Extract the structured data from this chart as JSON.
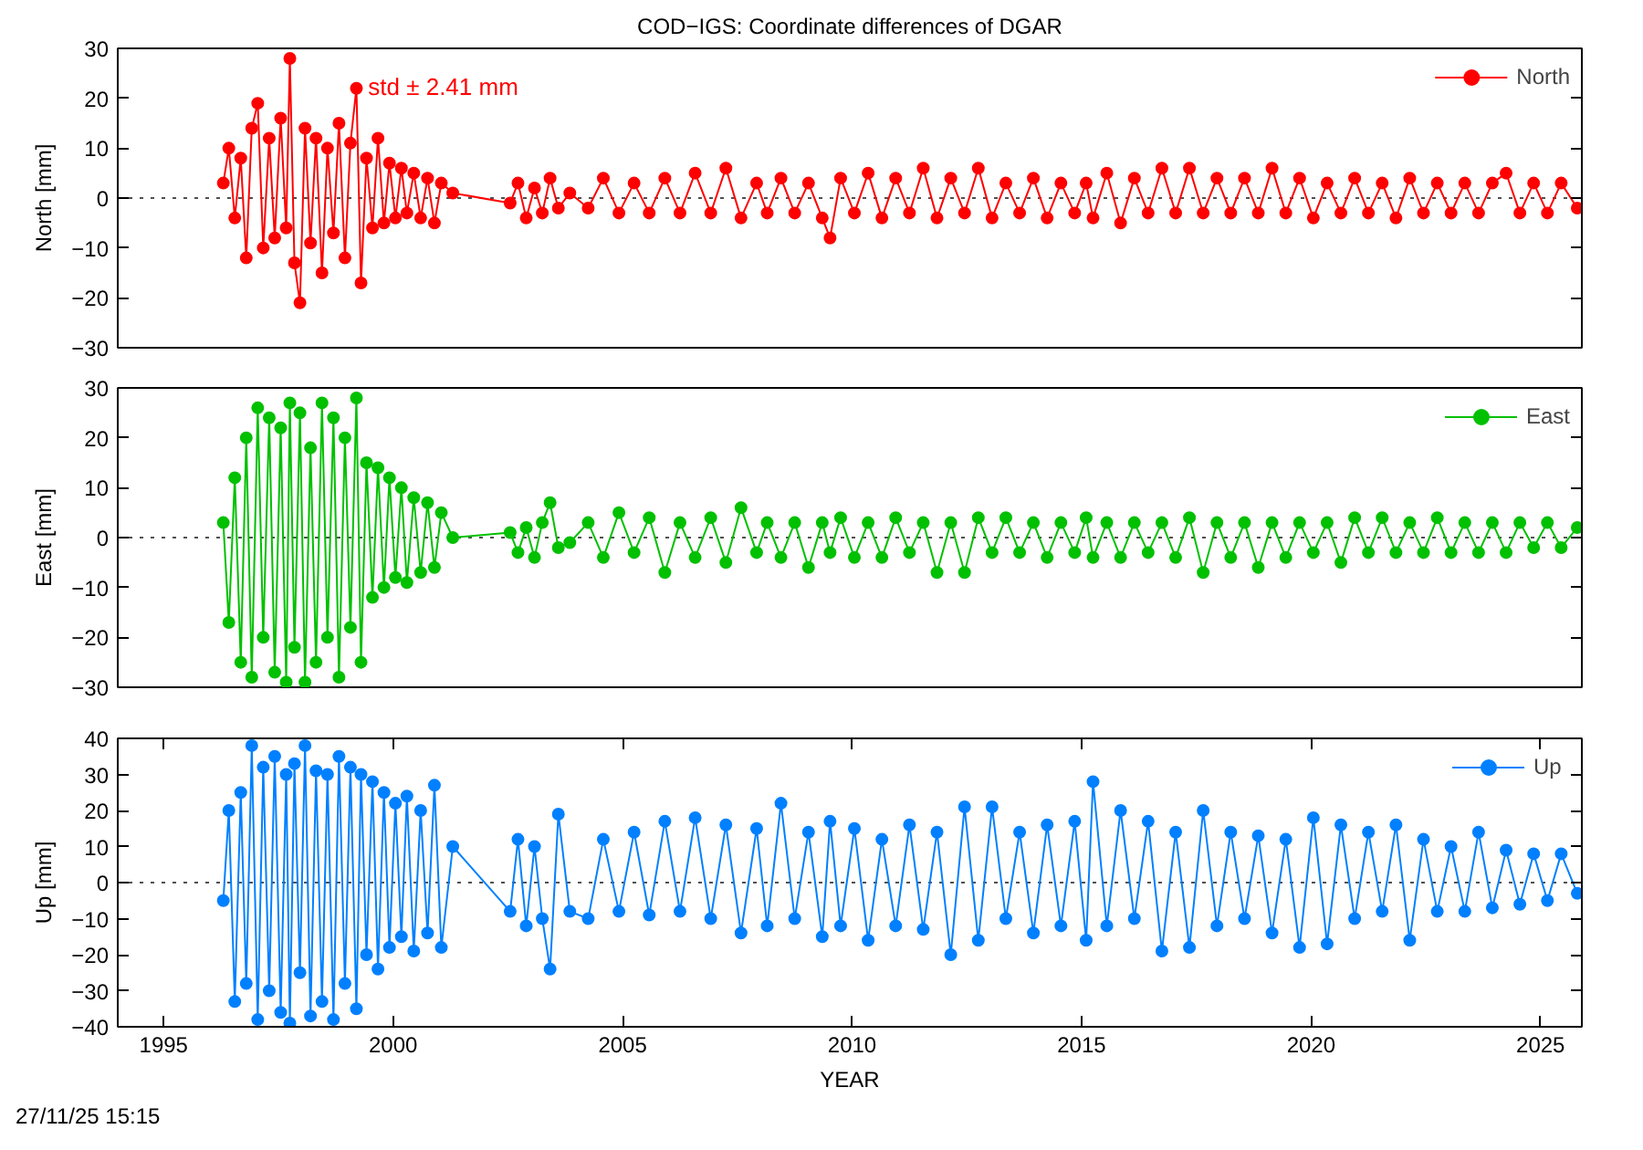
{
  "chart_data": [
    {
      "type": "line",
      "title": "COD−IGS: Coordinate differences of DGAR",
      "ylabel": "North [mm]",
      "tick_labels": "y",
      "marker": "circle",
      "line_style": "solid",
      "legend": "top right",
      "grid": false,
      "xlim": [
        1994.0,
        2025.9
      ],
      "xticks": [
        1995,
        2000,
        2005,
        2010,
        2015,
        2020,
        2025
      ],
      "ylim": [
        -30,
        30
      ],
      "yticks": [
        -30,
        -20,
        -10,
        0,
        10,
        20,
        30
      ],
      "ref_lines": [
        {
          "axis": "y",
          "value": 0,
          "color": "#505050",
          "line_style": "dotted"
        }
      ],
      "annotations": [
        "std ± 2.41 mm"
      ],
      "x": [
        1996.3,
        1996.42,
        1996.55,
        1996.68,
        1996.8,
        1996.92,
        1997.05,
        1997.17,
        1997.3,
        1997.42,
        1997.55,
        1997.67,
        1997.75,
        1997.85,
        1997.97,
        1998.08,
        1998.2,
        1998.32,
        1998.45,
        1998.57,
        1998.7,
        1998.82,
        1998.95,
        1999.07,
        1999.2,
        1999.3,
        1999.42,
        1999.55,
        1999.67,
        1999.8,
        1999.92,
        2000.05,
        2000.18,
        2000.3,
        2000.45,
        2000.6,
        2000.75,
        2000.9,
        2001.05,
        2001.3,
        2002.55,
        2002.72,
        2002.9,
        2003.08,
        2003.25,
        2003.42,
        2003.6,
        2003.85,
        2004.25,
        2004.58,
        2004.92,
        2005.25,
        2005.58,
        2005.92,
        2006.25,
        2006.58,
        2006.92,
        2007.25,
        2007.58,
        2007.92,
        2008.15,
        2008.45,
        2008.75,
        2009.05,
        2009.35,
        2009.52,
        2009.75,
        2010.05,
        2010.35,
        2010.65,
        2010.95,
        2011.25,
        2011.55,
        2011.85,
        2012.15,
        2012.45,
        2012.75,
        2013.05,
        2013.35,
        2013.65,
        2013.95,
        2014.25,
        2014.55,
        2014.85,
        2015.1,
        2015.25,
        2015.55,
        2015.85,
        2016.15,
        2016.45,
        2016.75,
        2017.05,
        2017.35,
        2017.65,
        2017.95,
        2018.25,
        2018.55,
        2018.85,
        2019.15,
        2019.45,
        2019.75,
        2020.05,
        2020.35,
        2020.65,
        2020.95,
        2021.25,
        2021.55,
        2021.85,
        2022.15,
        2022.45,
        2022.75,
        2023.05,
        2023.35,
        2023.65,
        2023.95,
        2024.25,
        2024.55,
        2024.85,
        2025.15,
        2025.45,
        2025.8
      ],
      "series": [
        {
          "name": "North",
          "color": "#ff0000",
          "values": [
            3,
            10,
            -4,
            8,
            -12,
            14,
            19,
            -10,
            12,
            -8,
            16,
            -6,
            28,
            -13,
            -21,
            14,
            -9,
            12,
            -15,
            10,
            -7,
            15,
            -12,
            11,
            22,
            -17,
            8,
            -6,
            12,
            -5,
            7,
            -4,
            6,
            -3,
            5,
            -4,
            4,
            -5,
            3,
            1,
            -1,
            3,
            -4,
            2,
            -3,
            4,
            -2,
            1,
            -2,
            4,
            -3,
            3,
            -3,
            4,
            -3,
            5,
            -3,
            6,
            -4,
            3,
            -3,
            4,
            -3,
            3,
            -4,
            -8,
            4,
            -3,
            5,
            -4,
            4,
            -3,
            6,
            -4,
            4,
            -3,
            6,
            -4,
            3,
            -3,
            4,
            -4,
            3,
            -3,
            3,
            -4,
            5,
            -5,
            4,
            -3,
            6,
            -3,
            6,
            -3,
            4,
            -3,
            4,
            -3,
            6,
            -3,
            4,
            -4,
            3,
            -3,
            4,
            -3,
            3,
            -4,
            4,
            -3,
            3,
            -3,
            3,
            -3,
            3,
            5,
            -3,
            3,
            -3,
            3,
            -2
          ]
        }
      ]
    },
    {
      "type": "line",
      "ylabel": "East [mm]",
      "tick_labels": "y",
      "marker": "circle",
      "line_style": "solid",
      "legend": "top right",
      "grid": false,
      "xlim": [
        1994.0,
        2025.9
      ],
      "xticks": [
        1995,
        2000,
        2005,
        2010,
        2015,
        2020,
        2025
      ],
      "ylim": [
        -30,
        30
      ],
      "yticks": [
        -30,
        -20,
        -10,
        0,
        10,
        20,
        30
      ],
      "ref_lines": [
        {
          "axis": "y",
          "value": 0,
          "color": "#505050",
          "line_style": "dotted"
        }
      ],
      "x": [
        1996.3,
        1996.42,
        1996.55,
        1996.68,
        1996.8,
        1996.92,
        1997.05,
        1997.17,
        1997.3,
        1997.42,
        1997.55,
        1997.67,
        1997.75,
        1997.85,
        1997.97,
        1998.08,
        1998.2,
        1998.32,
        1998.45,
        1998.57,
        1998.7,
        1998.82,
        1998.95,
        1999.07,
        1999.2,
        1999.3,
        1999.42,
        1999.55,
        1999.67,
        1999.8,
        1999.92,
        2000.05,
        2000.18,
        2000.3,
        2000.45,
        2000.6,
        2000.75,
        2000.9,
        2001.05,
        2001.3,
        2002.55,
        2002.72,
        2002.9,
        2003.08,
        2003.25,
        2003.42,
        2003.6,
        2003.85,
        2004.25,
        2004.58,
        2004.92,
        2005.25,
        2005.58,
        2005.92,
        2006.25,
        2006.58,
        2006.92,
        2007.25,
        2007.58,
        2007.92,
        2008.15,
        2008.45,
        2008.75,
        2009.05,
        2009.35,
        2009.52,
        2009.75,
        2010.05,
        2010.35,
        2010.65,
        2010.95,
        2011.25,
        2011.55,
        2011.85,
        2012.15,
        2012.45,
        2012.75,
        2013.05,
        2013.35,
        2013.65,
        2013.95,
        2014.25,
        2014.55,
        2014.85,
        2015.1,
        2015.25,
        2015.55,
        2015.85,
        2016.15,
        2016.45,
        2016.75,
        2017.05,
        2017.35,
        2017.65,
        2017.95,
        2018.25,
        2018.55,
        2018.85,
        2019.15,
        2019.45,
        2019.75,
        2020.05,
        2020.35,
        2020.65,
        2020.95,
        2021.25,
        2021.55,
        2021.85,
        2022.15,
        2022.45,
        2022.75,
        2023.05,
        2023.35,
        2023.65,
        2023.95,
        2024.25,
        2024.55,
        2024.85,
        2025.15,
        2025.45,
        2025.8
      ],
      "series": [
        {
          "name": "East",
          "color": "#00c000",
          "values": [
            3,
            -17,
            12,
            -25,
            20,
            -28,
            26,
            -20,
            24,
            -27,
            22,
            -29,
            27,
            -22,
            25,
            -29,
            18,
            -25,
            27,
            -20,
            24,
            -28,
            20,
            -18,
            28,
            -25,
            15,
            -12,
            14,
            -10,
            12,
            -8,
            10,
            -9,
            8,
            -7,
            7,
            -6,
            5,
            0,
            1,
            -3,
            2,
            -4,
            3,
            7,
            -2,
            -1,
            3,
            -4,
            5,
            -3,
            4,
            -7,
            3,
            -4,
            4,
            -5,
            6,
            -3,
            3,
            -4,
            3,
            -6,
            3,
            -3,
            4,
            -4,
            3,
            -4,
            4,
            -3,
            3,
            -7,
            3,
            -7,
            4,
            -3,
            4,
            -3,
            3,
            -4,
            3,
            -3,
            4,
            -4,
            3,
            -4,
            3,
            -3,
            3,
            -4,
            4,
            -7,
            3,
            -4,
            3,
            -6,
            3,
            -4,
            3,
            -3,
            3,
            -5,
            4,
            -3,
            4,
            -3,
            3,
            -3,
            4,
            -3,
            3,
            -3,
            3,
            -3,
            3,
            -2,
            3,
            -2,
            2
          ]
        }
      ]
    },
    {
      "type": "line",
      "ylabel": "Up [mm]",
      "xlabel": "YEAR",
      "marker": "circle",
      "line_style": "solid",
      "legend": "top right",
      "grid": false,
      "xlim": [
        1994.0,
        2025.9
      ],
      "xticks": [
        1995,
        2000,
        2005,
        2010,
        2015,
        2020,
        2025
      ],
      "ylim": [
        -40,
        40
      ],
      "yticks": [
        -40,
        -30,
        -20,
        -10,
        0,
        10,
        20,
        30,
        40
      ],
      "ref_lines": [
        {
          "axis": "y",
          "value": 0,
          "color": "#505050",
          "line_style": "dotted"
        }
      ],
      "annotations": [
        "27/11/25 15:15"
      ],
      "x": [
        1996.3,
        1996.42,
        1996.55,
        1996.68,
        1996.8,
        1996.92,
        1997.05,
        1997.17,
        1997.3,
        1997.42,
        1997.55,
        1997.67,
        1997.75,
        1997.85,
        1997.97,
        1998.08,
        1998.2,
        1998.32,
        1998.45,
        1998.57,
        1998.7,
        1998.82,
        1998.95,
        1999.07,
        1999.2,
        1999.3,
        1999.42,
        1999.55,
        1999.67,
        1999.8,
        1999.92,
        2000.05,
        2000.18,
        2000.3,
        2000.45,
        2000.6,
        2000.75,
        2000.9,
        2001.05,
        2001.3,
        2002.55,
        2002.72,
        2002.9,
        2003.08,
        2003.25,
        2003.42,
        2003.6,
        2003.85,
        2004.25,
        2004.58,
        2004.92,
        2005.25,
        2005.58,
        2005.92,
        2006.25,
        2006.58,
        2006.92,
        2007.25,
        2007.58,
        2007.92,
        2008.15,
        2008.45,
        2008.75,
        2009.05,
        2009.35,
        2009.52,
        2009.75,
        2010.05,
        2010.35,
        2010.65,
        2010.95,
        2011.25,
        2011.55,
        2011.85,
        2012.15,
        2012.45,
        2012.75,
        2013.05,
        2013.35,
        2013.65,
        2013.95,
        2014.25,
        2014.55,
        2014.85,
        2015.1,
        2015.25,
        2015.55,
        2015.85,
        2016.15,
        2016.45,
        2016.75,
        2017.05,
        2017.35,
        2017.65,
        2017.95,
        2018.25,
        2018.55,
        2018.85,
        2019.15,
        2019.45,
        2019.75,
        2020.05,
        2020.35,
        2020.65,
        2020.95,
        2021.25,
        2021.55,
        2021.85,
        2022.15,
        2022.45,
        2022.75,
        2023.05,
        2023.35,
        2023.65,
        2023.95,
        2024.25,
        2024.55,
        2024.85,
        2025.15,
        2025.45,
        2025.8
      ],
      "series": [
        {
          "name": "Up",
          "color": "#0080ff",
          "values": [
            -5,
            20,
            -33,
            25,
            -28,
            38,
            -38,
            32,
            -30,
            35,
            -36,
            30,
            -39,
            33,
            -25,
            38,
            -37,
            31,
            -33,
            30,
            -38,
            35,
            -28,
            32,
            -35,
            30,
            -20,
            28,
            -24,
            25,
            -18,
            22,
            -15,
            24,
            -19,
            20,
            -14,
            27,
            -18,
            10,
            -8,
            12,
            -12,
            10,
            -10,
            -24,
            19,
            -8,
            -10,
            12,
            -8,
            14,
            -9,
            17,
            -8,
            18,
            -10,
            16,
            -14,
            15,
            -12,
            22,
            -10,
            14,
            -15,
            17,
            -12,
            15,
            -16,
            12,
            -12,
            16,
            -13,
            14,
            -20,
            21,
            -16,
            21,
            -10,
            14,
            -14,
            16,
            -12,
            17,
            -16,
            28,
            -12,
            20,
            -10,
            17,
            -19,
            14,
            -18,
            20,
            -12,
            14,
            -10,
            13,
            -14,
            12,
            -18,
            18,
            -17,
            16,
            -10,
            14,
            -8,
            16,
            -16,
            12,
            -8,
            10,
            -8,
            14,
            -7,
            9,
            -6,
            8,
            -5,
            8,
            -3
          ]
        }
      ]
    }
  ]
}
